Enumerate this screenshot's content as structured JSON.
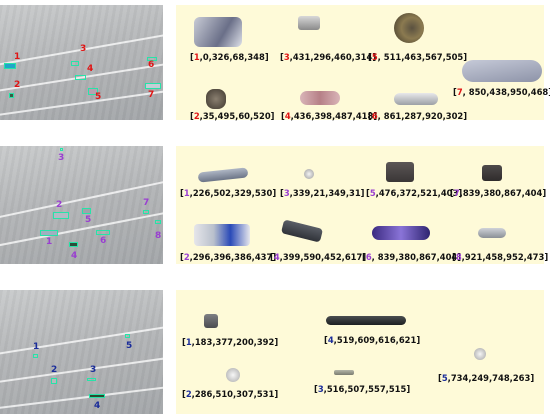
{
  "rows": [
    {
      "id": "row1",
      "marker_color": "#e01515",
      "aerial_markers": [
        {
          "label": "1"
        },
        {
          "label": "2"
        },
        {
          "label": "3"
        },
        {
          "label": "4"
        },
        {
          "label": "5"
        },
        {
          "label": "6"
        },
        {
          "label": "7"
        }
      ],
      "captions": [
        {
          "num": "1",
          "text": "0,326,68,348]"
        },
        {
          "num": "3",
          "text": "431,296,460,314]"
        },
        {
          "num": "5",
          "text": " 511,463,567,505]"
        },
        {
          "num": "7",
          "text": " 850,438,950,468]"
        },
        {
          "num": "2",
          "text": "35,495,60,520]"
        },
        {
          "num": "4",
          "text": "436,398,487,418]"
        },
        {
          "num": "6",
          "text": " 861,287,920,302]"
        }
      ]
    },
    {
      "id": "row2",
      "marker_color": "#9a3fd1",
      "aerial_markers": [
        {
          "label": "3"
        },
        {
          "label": "2"
        },
        {
          "label": "5"
        },
        {
          "label": "7"
        },
        {
          "label": "6"
        },
        {
          "label": "8"
        },
        {
          "label": "1"
        },
        {
          "label": "4"
        }
      ],
      "captions": [
        {
          "num": "1",
          "text": "226,502,329,530]"
        },
        {
          "num": "3",
          "text": "339,21,349,31]"
        },
        {
          "num": "5",
          "text": "476,372,521,403]"
        },
        {
          "num": "7",
          "text": "839,380,867,404]"
        },
        {
          "num": "2",
          "text": "296,396,386,437]"
        },
        {
          "num": "4",
          "text": "399,590,452,617]"
        },
        {
          "num": "6",
          "text": " 839,380,867,404]"
        },
        {
          "num": "8",
          "text": "921,458,952,473]"
        }
      ]
    },
    {
      "id": "row3",
      "marker_color": "#1b2d9a",
      "aerial_markers": [
        {
          "label": "1"
        },
        {
          "label": "5"
        },
        {
          "label": "2"
        },
        {
          "label": "3"
        },
        {
          "label": "4"
        }
      ],
      "captions": [
        {
          "num": "1",
          "text": "183,377,200,392]"
        },
        {
          "num": "4",
          "text": "519,609,616,621]"
        },
        {
          "num": "2",
          "text": "286,510,307,531]"
        },
        {
          "num": "3",
          "text": "516,507,557,515]"
        },
        {
          "num": "5",
          "text": "734,249,748,263]"
        }
      ]
    }
  ]
}
